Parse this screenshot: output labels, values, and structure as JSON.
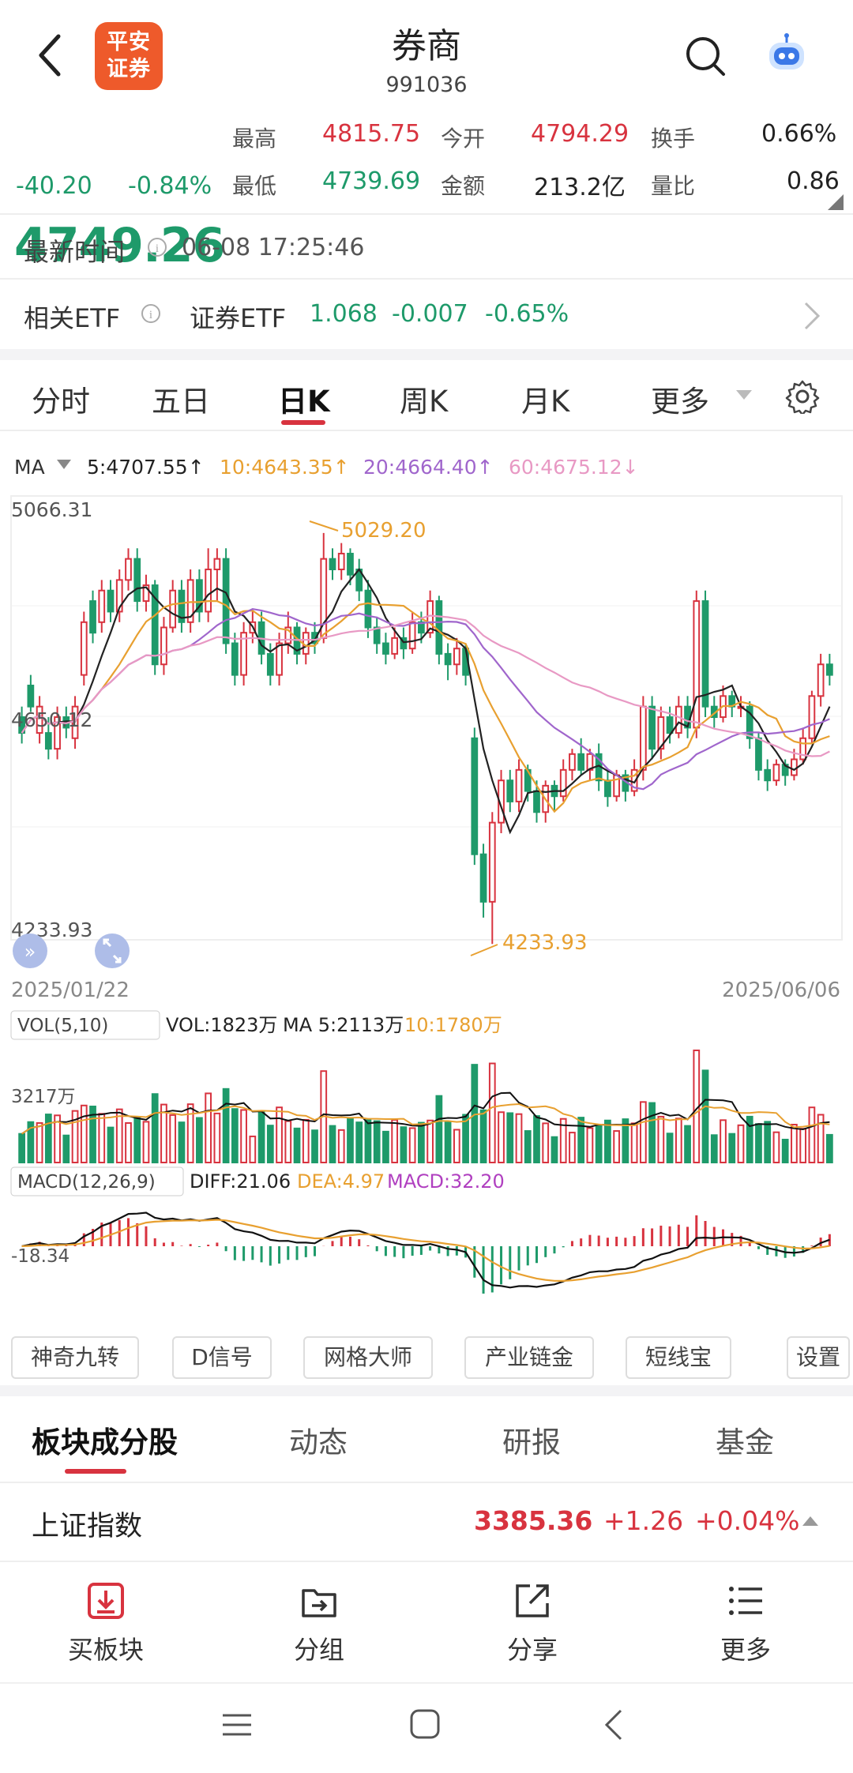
{
  "header": {
    "title": "券商",
    "code": "991036",
    "logo_text": "平安证券",
    "logo_line1": "平安",
    "logo_line2": "证券",
    "back_icon": "back-chevron-icon",
    "search_icon": "search-icon",
    "assistant_icon": "robot-assistant-icon"
  },
  "quote": {
    "price": "4749.26",
    "change": "-40.20",
    "change_pct": "-0.84%",
    "high_label": "最高",
    "high": "4815.75",
    "low_label": "最低",
    "low": "4739.69",
    "open_label": "今开",
    "open": "4794.29",
    "amount_label": "金额",
    "amount": "213.2亿",
    "turnover_label": "换手",
    "turnover": "0.66%",
    "vol_ratio_label": "量比",
    "vol_ratio": "0.86"
  },
  "latest": {
    "label": "最新时间",
    "value": "06-08 17:25:46"
  },
  "etf": {
    "label": "相关ETF",
    "name": "证券ETF",
    "price": "1.068",
    "change": "-0.007",
    "change_pct": "-0.65%"
  },
  "tabs": [
    "分时",
    "五日",
    "日K",
    "周K",
    "月K",
    "更多"
  ],
  "active_tab": "日K",
  "ma_legend": {
    "label": "MA",
    "ma5": "5:4707.55↑",
    "ma10": "10:4643.35↑",
    "ma20": "20:4664.40↑",
    "ma60": "60:4675.12↓"
  },
  "axis": {
    "top": "5066.31",
    "mid": "4650.12",
    "bottom": "4233.93",
    "max_marker": "5029.20",
    "min_marker": "4233.93",
    "date_start": "2025/01/22",
    "date_end": "2025/06/06"
  },
  "vol_legend": {
    "label": "VOL(5,10)",
    "vol": "VOL:1823万",
    "ma5": "MA 5:2113万",
    "ma10": "10:1780万",
    "axis": "3217万"
  },
  "macd_legend": {
    "label": "MACD(12,26,9)",
    "diff": "DIFF:21.06",
    "dea": "DEA:4.97",
    "macd": "MACD:32.20",
    "axis": "-18.34"
  },
  "tools": [
    "神奇九转",
    "D信号",
    "网格大师",
    "产业链金",
    "短线宝",
    "设置"
  ],
  "subtabs": [
    "板块成分股",
    "动态",
    "研报",
    "基金"
  ],
  "index_row": {
    "name": "上证指数",
    "value": "3385.36",
    "change": "+1.26",
    "pct": "+0.04%"
  },
  "actions": [
    {
      "label": "买板块",
      "icon": "buy-block-icon"
    },
    {
      "label": "分组",
      "icon": "folder-icon"
    },
    {
      "label": "分享",
      "icon": "share-icon"
    },
    {
      "label": "更多",
      "icon": "menu-list-icon"
    }
  ],
  "colors": {
    "up": "#d8333f",
    "down": "#1e9a6a",
    "ma5": "#222222",
    "ma10": "#e8a030",
    "ma20": "#a066cc",
    "ma60": "#e899c4"
  },
  "chart_data": {
    "type": "candlestick",
    "ymin": 4233.93,
    "ymax": 5066.31,
    "candles": [
      [
        4680,
        4650,
        4700,
        4630
      ],
      [
        4740,
        4700,
        4760,
        4690
      ],
      [
        4650,
        4700,
        4720,
        4630
      ],
      [
        4650,
        4620,
        4680,
        4600
      ],
      [
        4620,
        4680,
        4700,
        4600
      ],
      [
        4680,
        4660,
        4700,
        4640
      ],
      [
        4640,
        4700,
        4720,
        4620
      ],
      [
        4760,
        4860,
        4880,
        4740
      ],
      [
        4900,
        4840,
        4920,
        4820
      ],
      [
        4860,
        4920,
        4940,
        4840
      ],
      [
        4920,
        4880,
        4940,
        4860
      ],
      [
        4880,
        4940,
        4960,
        4860
      ],
      [
        4940,
        4980,
        5000,
        4920
      ],
      [
        4980,
        4900,
        5000,
        4880
      ],
      [
        4900,
        4930,
        4950,
        4880
      ],
      [
        4930,
        4780,
        4940,
        4760
      ],
      [
        4780,
        4850,
        4870,
        4760
      ],
      [
        4850,
        4920,
        4940,
        4840
      ],
      [
        4920,
        4860,
        4940,
        4840
      ],
      [
        4860,
        4940,
        4960,
        4840
      ],
      [
        4940,
        4880,
        4960,
        4860
      ],
      [
        4880,
        4960,
        5000,
        4860
      ],
      [
        4960,
        4980,
        5000,
        4900
      ],
      [
        4980,
        4820,
        5000,
        4800
      ],
      [
        4820,
        4760,
        4840,
        4740
      ],
      [
        4760,
        4840,
        4860,
        4740
      ],
      [
        4840,
        4860,
        4880,
        4820
      ],
      [
        4860,
        4800,
        4880,
        4780
      ],
      [
        4800,
        4760,
        4820,
        4740
      ],
      [
        4760,
        4820,
        4840,
        4740
      ],
      [
        4820,
        4850,
        4880,
        4800
      ],
      [
        4850,
        4800,
        4860,
        4780
      ],
      [
        4800,
        4840,
        4850,
        4780
      ],
      [
        4840,
        4820,
        4860,
        4800
      ],
      [
        4830,
        4980,
        5029,
        4820
      ],
      [
        4980,
        4960,
        5000,
        4940
      ],
      [
        4960,
        4990,
        5010,
        4940
      ],
      [
        4990,
        4950,
        5000,
        4930
      ],
      [
        4960,
        4920,
        4980,
        4900
      ],
      [
        4920,
        4850,
        4940,
        4830
      ],
      [
        4850,
        4820,
        4870,
        4800
      ],
      [
        4820,
        4800,
        4840,
        4780
      ],
      [
        4800,
        4830,
        4850,
        4790
      ],
      [
        4830,
        4810,
        4850,
        4790
      ],
      [
        4810,
        4860,
        4880,
        4800
      ],
      [
        4860,
        4840,
        4880,
        4820
      ],
      [
        4840,
        4900,
        4920,
        4830
      ],
      [
        4900,
        4800,
        4910,
        4780
      ],
      [
        4800,
        4780,
        4820,
        4750
      ],
      [
        4780,
        4810,
        4830,
        4760
      ],
      [
        4810,
        4760,
        4820,
        4740
      ],
      [
        4640,
        4420,
        4660,
        4400
      ],
      [
        4420,
        4330,
        4440,
        4300
      ],
      [
        4330,
        4480,
        4500,
        4250
      ],
      [
        4480,
        4560,
        4580,
        4460
      ],
      [
        4560,
        4520,
        4580,
        4500
      ],
      [
        4520,
        4580,
        4600,
        4500
      ],
      [
        4580,
        4540,
        4590,
        4520
      ],
      [
        4540,
        4500,
        4560,
        4480
      ],
      [
        4500,
        4550,
        4560,
        4480
      ],
      [
        4550,
        4530,
        4560,
        4500
      ],
      [
        4530,
        4580,
        4600,
        4520
      ],
      [
        4580,
        4610,
        4620,
        4560
      ],
      [
        4610,
        4580,
        4640,
        4570
      ],
      [
        4580,
        4610,
        4620,
        4560
      ],
      [
        4610,
        4560,
        4630,
        4540
      ],
      [
        4560,
        4530,
        4580,
        4510
      ],
      [
        4530,
        4570,
        4580,
        4520
      ],
      [
        4570,
        4540,
        4580,
        4520
      ],
      [
        4540,
        4580,
        4600,
        4530
      ],
      [
        4580,
        4700,
        4720,
        4560
      ],
      [
        4700,
        4620,
        4720,
        4600
      ],
      [
        4620,
        4680,
        4700,
        4600
      ],
      [
        4680,
        4650,
        4700,
        4630
      ],
      [
        4650,
        4700,
        4720,
        4640
      ],
      [
        4700,
        4660,
        4720,
        4640
      ],
      [
        4660,
        4900,
        4920,
        4640
      ],
      [
        4900,
        4700,
        4920,
        4680
      ],
      [
        4700,
        4680,
        4720,
        4660
      ],
      [
        4680,
        4720,
        4740,
        4670
      ],
      [
        4720,
        4700,
        4730,
        4680
      ],
      [
        4700,
        4700,
        4720,
        4680
      ],
      [
        4700,
        4640,
        4710,
        4620
      ],
      [
        4640,
        4580,
        4650,
        4560
      ],
      [
        4580,
        4560,
        4600,
        4540
      ],
      [
        4560,
        4590,
        4600,
        4550
      ],
      [
        4590,
        4570,
        4600,
        4550
      ],
      [
        4570,
        4600,
        4620,
        4560
      ],
      [
        4600,
        4640,
        4660,
        4590
      ],
      [
        4640,
        4720,
        4730,
        4630
      ],
      [
        4720,
        4780,
        4800,
        4700
      ],
      [
        4780,
        4760,
        4800,
        4740
      ]
    ]
  }
}
